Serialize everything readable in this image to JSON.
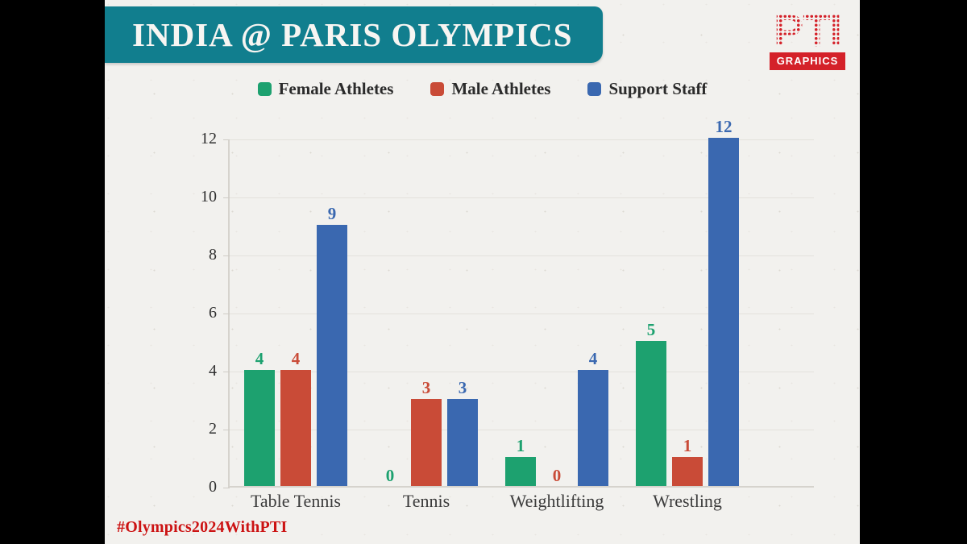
{
  "page": {
    "title": "INDIA @ PARIS OLYMPICS",
    "hashtag": "#Olympics2024WithPTI",
    "logo": {
      "brand": "PTI",
      "sub": "GRAPHICS"
    }
  },
  "colors": {
    "header_teal": "#117E8E",
    "background": "#F2F1EE",
    "letterbox": "#000000",
    "logo_red": "#D42129",
    "hashtag_red": "#CC1313",
    "gridline": "#E3E1DC",
    "axis_text": "#2F2F2F"
  },
  "chart_data": {
    "type": "bar",
    "title": "INDIA @ PARIS OLYMPICS",
    "categories": [
      "Table Tennis",
      "Tennis",
      "Weightlifting",
      "Wrestling"
    ],
    "series": [
      {
        "name": "Female Athletes",
        "color": "#1DA16F",
        "values": [
          4,
          0,
          1,
          5
        ]
      },
      {
        "name": "Male Athletes",
        "color": "#C94B37",
        "values": [
          4,
          3,
          0,
          1
        ]
      },
      {
        "name": "Support Staff",
        "color": "#3A68B0",
        "values": [
          9,
          3,
          4,
          12
        ]
      }
    ],
    "xlabel": "",
    "ylabel": "",
    "ylim": [
      0,
      12
    ],
    "yticks": [
      0,
      2,
      4,
      6,
      8,
      10,
      12
    ],
    "grid": "horizontal",
    "legend_position": "top"
  }
}
